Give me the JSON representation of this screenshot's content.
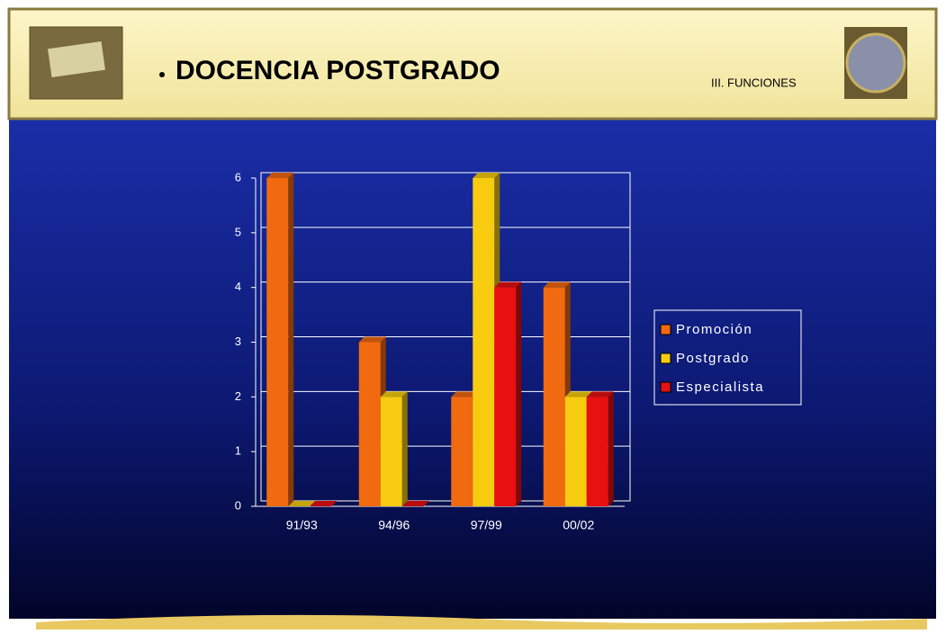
{
  "header": {
    "title": "DOCENCIA POSTGRADO",
    "section": "III. FUNCIONES"
  },
  "chart_data": {
    "type": "bar",
    "categories": [
      "91/93",
      "94/96",
      "97/99",
      "00/02"
    ],
    "series": [
      {
        "name": "Promoción",
        "color": "#f26a10",
        "values": [
          6,
          3,
          2,
          4
        ]
      },
      {
        "name": "Postgrado",
        "color": "#f7cc10",
        "values": [
          0,
          2,
          6,
          2
        ]
      },
      {
        "name": "Especialista",
        "color": "#e81010",
        "values": [
          0,
          0,
          4,
          2
        ]
      }
    ],
    "ylim": [
      0,
      6
    ],
    "yticks": [
      0,
      1,
      2,
      3,
      4,
      5,
      6
    ],
    "grid": true,
    "legend": "right"
  }
}
